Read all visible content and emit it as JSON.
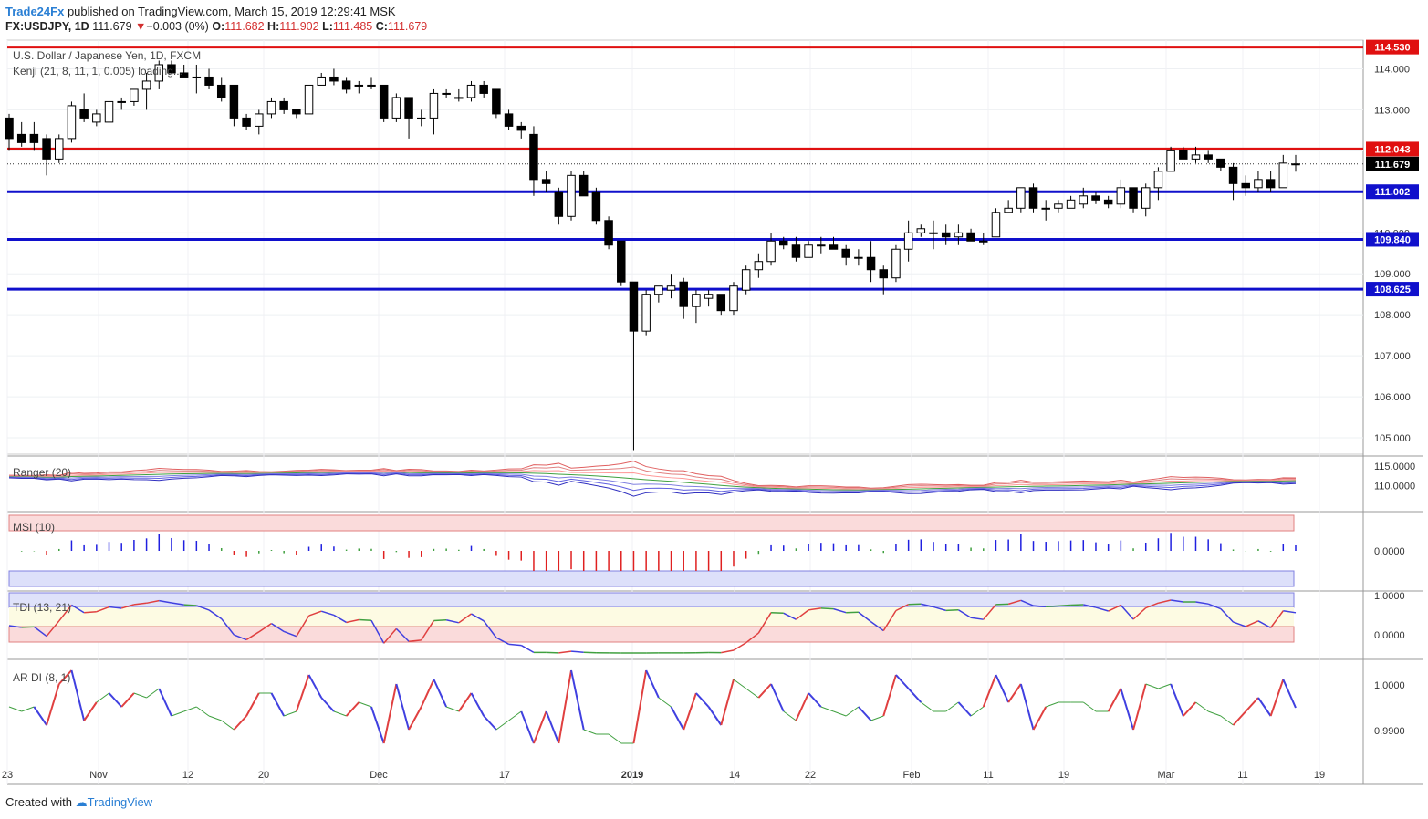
{
  "header": {
    "author": "Trade24Fx",
    "published_text": " published on TradingView.com, March 15, 2019 12:29:41 MSK",
    "symbol_line": "FX:USDJPY, 1D",
    "last": "111.679",
    "change": "−0.003 (0%)",
    "o_label": "O:",
    "o_val": "111.682",
    "h_label": "H:",
    "h_val": "111.902",
    "l_label": "L:",
    "l_val": "111.485",
    "c_label": "C:",
    "c_val": "111.679"
  },
  "main_legend": {
    "title": "U.S. Dollar / Japanese Yen, 1D, FXCM",
    "indicator": "Kenji (21, 8, 11, 1, 0.005) loading..."
  },
  "panes": {
    "ranger": "Ranger (20)",
    "msi": "MSI (10)",
    "tdi": "TDI (13, 21)",
    "ardi": "AR DI (8, 1)"
  },
  "footer": {
    "created_with": "Created with",
    "brand": "TradingView"
  },
  "colors": {
    "up": "#000000",
    "down": "#000000",
    "red_line": "#e01010",
    "blue_line": "#1010cc",
    "price_red": "#e01010",
    "price_blue": "#1010cc",
    "last_price_bg": "#000000"
  },
  "chart_data": {
    "type": "candlestick",
    "y_range": [
      104.6,
      114.7
    ],
    "y_ticks": [
      "114.000",
      "113.000",
      "112.000",
      "111.000",
      "110.000",
      "109.000",
      "108.000",
      "107.000",
      "106.000",
      "105.000"
    ],
    "x_labels": [
      "23",
      "Nov",
      "12",
      "20",
      "Dec",
      "17",
      "2019",
      "14",
      "22",
      "Feb",
      "11",
      "19",
      "Mar",
      "11",
      "19"
    ],
    "horizontal_levels": [
      {
        "value": 114.53,
        "label": "114.530",
        "color": "red"
      },
      {
        "value": 112.043,
        "label": "112.043",
        "color": "red"
      },
      {
        "value": 111.679,
        "label": "111.679",
        "color": "black",
        "dotted": true
      },
      {
        "value": 111.002,
        "label": "111.002",
        "color": "blue"
      },
      {
        "value": 109.84,
        "label": "109.840",
        "color": "blue"
      },
      {
        "value": 108.625,
        "label": "108.625",
        "color": "blue"
      }
    ],
    "candles": [
      [
        112.8,
        112.9,
        112.0,
        112.3
      ],
      [
        112.4,
        112.7,
        112.1,
        112.2
      ],
      [
        112.4,
        112.7,
        112.0,
        112.2
      ],
      [
        112.3,
        112.4,
        111.4,
        111.8
      ],
      [
        111.8,
        112.4,
        111.7,
        112.3
      ],
      [
        112.3,
        113.2,
        112.2,
        113.1
      ],
      [
        113.0,
        113.4,
        112.7,
        112.8
      ],
      [
        112.7,
        113.0,
        112.6,
        112.9
      ],
      [
        112.7,
        113.3,
        112.6,
        113.2
      ],
      [
        113.2,
        113.3,
        113.0,
        113.2
      ],
      [
        113.2,
        113.5,
        113.1,
        113.5
      ],
      [
        113.5,
        113.9,
        113.0,
        113.7
      ],
      [
        113.7,
        114.2,
        113.5,
        114.1
      ],
      [
        114.1,
        114.2,
        113.9,
        113.9
      ],
      [
        113.9,
        114.1,
        113.8,
        113.8
      ],
      [
        113.8,
        114.1,
        113.4,
        113.8
      ],
      [
        113.8,
        114.0,
        113.5,
        113.6
      ],
      [
        113.6,
        113.8,
        113.2,
        113.3
      ],
      [
        113.6,
        113.6,
        112.6,
        112.8
      ],
      [
        112.8,
        112.9,
        112.5,
        112.6
      ],
      [
        112.6,
        113.0,
        112.4,
        112.9
      ],
      [
        112.9,
        113.3,
        112.8,
        113.2
      ],
      [
        113.2,
        113.3,
        112.9,
        113.0
      ],
      [
        113.0,
        113.0,
        112.8,
        112.9
      ],
      [
        112.9,
        113.6,
        112.9,
        113.6
      ],
      [
        113.6,
        113.9,
        113.6,
        113.8
      ],
      [
        113.8,
        114.0,
        113.6,
        113.7
      ],
      [
        113.7,
        113.8,
        113.4,
        113.5
      ],
      [
        113.6,
        113.7,
        113.4,
        113.6
      ],
      [
        113.6,
        113.8,
        113.5,
        113.6
      ],
      [
        113.6,
        113.6,
        112.7,
        112.8
      ],
      [
        112.8,
        113.4,
        112.7,
        113.3
      ],
      [
        113.3,
        113.3,
        112.3,
        112.8
      ],
      [
        112.8,
        113.0,
        112.6,
        112.8
      ],
      [
        112.8,
        113.5,
        112.4,
        113.4
      ],
      [
        113.4,
        113.5,
        113.3,
        113.4
      ],
      [
        113.3,
        113.5,
        113.2,
        113.3
      ],
      [
        113.3,
        113.7,
        113.2,
        113.6
      ],
      [
        113.6,
        113.7,
        113.3,
        113.4
      ],
      [
        113.5,
        113.5,
        112.8,
        112.9
      ],
      [
        112.9,
        113.0,
        112.5,
        112.6
      ],
      [
        112.6,
        112.7,
        112.3,
        112.5
      ],
      [
        112.4,
        112.6,
        110.9,
        111.3
      ],
      [
        111.3,
        111.5,
        111.0,
        111.2
      ],
      [
        111.0,
        111.1,
        110.2,
        110.4
      ],
      [
        110.4,
        111.5,
        110.3,
        111.4
      ],
      [
        111.4,
        111.5,
        110.9,
        110.9
      ],
      [
        111.0,
        111.1,
        110.2,
        110.3
      ],
      [
        110.3,
        110.4,
        109.6,
        109.7
      ],
      [
        109.8,
        109.8,
        108.7,
        108.8
      ],
      [
        108.8,
        108.8,
        104.7,
        107.6
      ],
      [
        107.6,
        108.6,
        107.5,
        108.5
      ],
      [
        108.5,
        108.7,
        108.3,
        108.7
      ],
      [
        108.6,
        109.0,
        108.4,
        108.7
      ],
      [
        108.8,
        108.9,
        107.9,
        108.2
      ],
      [
        108.2,
        108.6,
        107.8,
        108.5
      ],
      [
        108.4,
        108.6,
        108.2,
        108.5
      ],
      [
        108.5,
        108.5,
        108.0,
        108.1
      ],
      [
        108.1,
        108.8,
        108.0,
        108.7
      ],
      [
        108.6,
        109.2,
        108.5,
        109.1
      ],
      [
        109.1,
        109.5,
        108.9,
        109.3
      ],
      [
        109.3,
        110.0,
        109.2,
        109.8
      ],
      [
        109.8,
        109.9,
        109.6,
        109.7
      ],
      [
        109.7,
        109.9,
        109.3,
        109.4
      ],
      [
        109.4,
        109.8,
        109.4,
        109.7
      ],
      [
        109.7,
        109.9,
        109.5,
        109.7
      ],
      [
        109.7,
        109.9,
        109.6,
        109.6
      ],
      [
        109.6,
        109.7,
        109.2,
        109.4
      ],
      [
        109.4,
        109.6,
        109.2,
        109.4
      ],
      [
        109.4,
        109.8,
        108.8,
        109.1
      ],
      [
        109.1,
        109.2,
        108.5,
        108.9
      ],
      [
        108.9,
        109.7,
        108.8,
        109.6
      ],
      [
        109.6,
        110.3,
        109.3,
        110.0
      ],
      [
        110.0,
        110.2,
        109.9,
        110.1
      ],
      [
        110.0,
        110.3,
        109.6,
        110.0
      ],
      [
        110.0,
        110.2,
        109.7,
        109.9
      ],
      [
        109.9,
        110.2,
        109.7,
        110.0
      ],
      [
        110.0,
        110.1,
        109.8,
        109.8
      ],
      [
        109.8,
        110.0,
        109.7,
        109.8
      ],
      [
        109.9,
        110.6,
        109.9,
        110.5
      ],
      [
        110.5,
        110.8,
        110.5,
        110.6
      ],
      [
        110.6,
        111.1,
        110.5,
        111.1
      ],
      [
        111.1,
        111.2,
        110.5,
        110.6
      ],
      [
        110.6,
        110.8,
        110.3,
        110.6
      ],
      [
        110.6,
        110.8,
        110.5,
        110.7
      ],
      [
        110.6,
        110.9,
        110.6,
        110.8
      ],
      [
        110.7,
        111.1,
        110.6,
        110.9
      ],
      [
        110.9,
        111.0,
        110.7,
        110.8
      ],
      [
        110.8,
        110.9,
        110.6,
        110.7
      ],
      [
        110.7,
        111.3,
        110.6,
        111.1
      ],
      [
        111.1,
        111.1,
        110.5,
        110.6
      ],
      [
        110.6,
        111.2,
        110.4,
        111.1
      ],
      [
        111.1,
        111.6,
        110.8,
        111.5
      ],
      [
        111.5,
        112.1,
        111.5,
        112.0
      ],
      [
        112.0,
        112.1,
        111.8,
        111.8
      ],
      [
        111.8,
        112.1,
        111.7,
        111.9
      ],
      [
        111.9,
        112.0,
        111.7,
        111.8
      ],
      [
        111.8,
        111.8,
        111.5,
        111.6
      ],
      [
        111.6,
        111.7,
        110.8,
        111.2
      ],
      [
        111.2,
        111.4,
        110.9,
        111.1
      ],
      [
        111.1,
        111.5,
        111.0,
        111.3
      ],
      [
        111.3,
        111.5,
        111.0,
        111.1
      ],
      [
        111.1,
        111.9,
        111.1,
        111.7
      ],
      [
        111.68,
        111.9,
        111.49,
        111.68
      ]
    ]
  }
}
